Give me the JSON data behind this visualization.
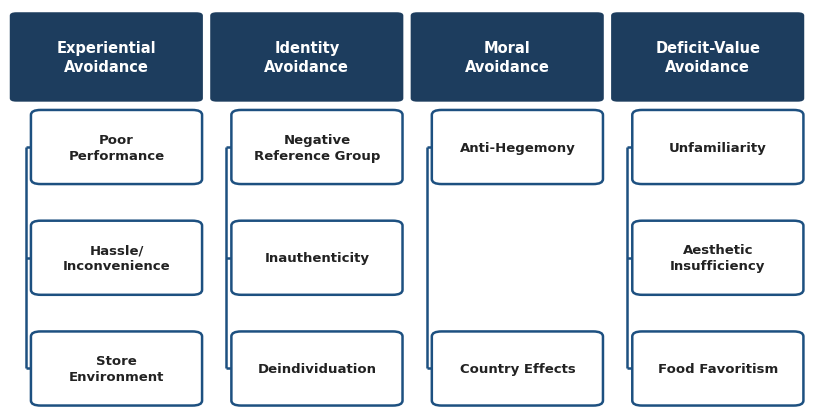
{
  "columns": [
    {
      "header": "Experiential\nAvoidance",
      "items": [
        "Poor\nPerformance",
        "Hassle/\nInconvenience",
        "Store\nEnvironment"
      ]
    },
    {
      "header": "Identity\nAvoidance",
      "items": [
        "Negative\nReference Group",
        "Inauthenticity",
        "Deindividuation"
      ]
    },
    {
      "header": "Moral\nAvoidance",
      "items": [
        "Anti-Hegemony",
        "Country Effects"
      ]
    },
    {
      "header": "Deficit-Value\nAvoidance",
      "items": [
        "Unfamiliarity",
        "Aesthetic\nInsufficiency",
        "Food Favoritism"
      ]
    }
  ],
  "header_bg": "#1d3d5e",
  "header_text_color": "#ffffff",
  "item_bg": "#ffffff",
  "item_border_color": "#1d5080",
  "item_text_color": "#222222",
  "background_color": "#ffffff",
  "header_fontsize": 10.5,
  "item_fontsize": 9.5,
  "fig_width": 8.14,
  "fig_height": 4.14,
  "dpi": 100
}
